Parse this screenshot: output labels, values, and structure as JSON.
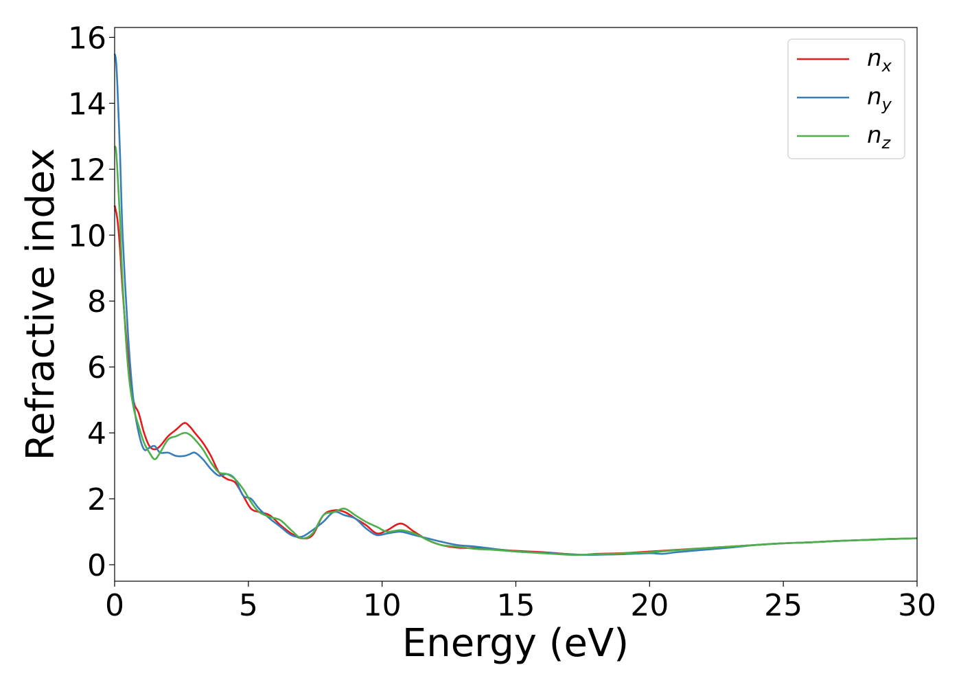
{
  "chart_data": {
    "type": "line",
    "xlabel": "Energy (eV)",
    "ylabel": "Refractive index",
    "xlim": [
      0,
      30
    ],
    "ylim": [
      -0.5,
      16.3
    ],
    "xticks": [
      "0",
      "5",
      "10",
      "15",
      "20",
      "25",
      "30"
    ],
    "yticks": [
      "0",
      "2",
      "4",
      "6",
      "8",
      "10",
      "12",
      "14",
      "16"
    ],
    "grid": false,
    "legend": {
      "placement": "top-right",
      "entries": [
        {
          "base": "n",
          "sub": "x",
          "color": "#e41a1c"
        },
        {
          "base": "n",
          "sub": "y",
          "color": "#377eb8"
        },
        {
          "base": "n",
          "sub": "z",
          "color": "#4daf4a"
        }
      ]
    },
    "series": [
      {
        "name": "n_x",
        "color": "#e41a1c",
        "x": [
          0,
          0.1,
          0.2,
          0.3,
          0.5,
          0.7,
          0.9,
          1.1,
          1.3,
          1.5,
          1.7,
          2.0,
          2.3,
          2.6,
          2.8,
          3.0,
          3.3,
          3.6,
          3.9,
          4.2,
          4.5,
          4.8,
          5.1,
          5.4,
          5.8,
          6.2,
          6.6,
          7.0,
          7.4,
          7.8,
          8.2,
          8.6,
          9.0,
          9.4,
          9.8,
          10.2,
          10.7,
          11.2,
          11.7,
          12.2,
          12.8,
          13.5,
          14.2,
          15.0,
          16.0,
          17.0,
          17.5,
          18.0,
          19.0,
          20.0,
          21.0,
          22.0,
          23.0,
          24.0,
          25.0,
          26.0,
          27.0,
          28.0,
          29.0,
          30.0
        ],
        "y": [
          10.9,
          10.5,
          9.6,
          8.3,
          6.3,
          5.0,
          4.6,
          4.0,
          3.6,
          3.5,
          3.6,
          3.9,
          4.1,
          4.3,
          4.2,
          4.0,
          3.7,
          3.3,
          2.8,
          2.6,
          2.5,
          2.1,
          1.7,
          1.6,
          1.5,
          1.2,
          0.95,
          0.8,
          0.9,
          1.5,
          1.65,
          1.6,
          1.4,
          1.2,
          0.95,
          1.05,
          1.25,
          1.0,
          0.75,
          0.6,
          0.52,
          0.5,
          0.47,
          0.42,
          0.38,
          0.32,
          0.3,
          0.33,
          0.35,
          0.4,
          0.45,
          0.5,
          0.55,
          0.6,
          0.65,
          0.68,
          0.72,
          0.75,
          0.78,
          0.8
        ]
      },
      {
        "name": "n_y",
        "color": "#377eb8",
        "x": [
          0,
          0.05,
          0.1,
          0.2,
          0.3,
          0.5,
          0.7,
          0.9,
          1.1,
          1.3,
          1.5,
          1.7,
          2.0,
          2.3,
          2.6,
          2.8,
          3.0,
          3.3,
          3.6,
          3.9,
          4.2,
          4.5,
          4.8,
          5.1,
          5.4,
          5.8,
          6.2,
          6.6,
          7.0,
          7.4,
          7.8,
          8.2,
          8.6,
          9.0,
          9.4,
          9.8,
          10.2,
          10.7,
          11.2,
          11.7,
          12.2,
          12.8,
          13.5,
          14.2,
          15.0,
          16.0,
          17.0,
          17.5,
          18.0,
          19.0,
          20.0,
          20.5,
          21.0,
          22.0,
          23.0,
          24.0,
          25.0,
          26.0,
          27.0,
          28.0,
          29.0,
          30.0
        ],
        "y": [
          15.5,
          15.3,
          14.6,
          12.5,
          10.0,
          7.0,
          5.0,
          4.0,
          3.5,
          3.55,
          3.6,
          3.4,
          3.4,
          3.3,
          3.3,
          3.35,
          3.4,
          3.2,
          2.9,
          2.7,
          2.75,
          2.6,
          2.1,
          2.0,
          1.7,
          1.4,
          1.15,
          0.9,
          0.85,
          1.05,
          1.3,
          1.6,
          1.5,
          1.4,
          1.1,
          0.9,
          0.95,
          1.0,
          0.9,
          0.8,
          0.7,
          0.6,
          0.55,
          0.48,
          0.4,
          0.36,
          0.32,
          0.3,
          0.3,
          0.32,
          0.35,
          0.33,
          0.38,
          0.45,
          0.52,
          0.6,
          0.65,
          0.68,
          0.72,
          0.75,
          0.78,
          0.8
        ]
      },
      {
        "name": "n_z",
        "color": "#4daf4a",
        "x": [
          0,
          0.05,
          0.1,
          0.2,
          0.3,
          0.5,
          0.7,
          0.9,
          1.1,
          1.3,
          1.5,
          1.7,
          2.0,
          2.3,
          2.6,
          2.8,
          3.0,
          3.3,
          3.6,
          3.9,
          4.2,
          4.5,
          4.8,
          5.1,
          5.4,
          5.8,
          6.2,
          6.6,
          7.0,
          7.4,
          7.8,
          8.2,
          8.6,
          9.0,
          9.4,
          9.8,
          10.2,
          10.7,
          11.2,
          11.7,
          12.2,
          12.8,
          13.5,
          14.2,
          15.0,
          16.0,
          17.0,
          17.5,
          18.0,
          19.0,
          20.0,
          21.0,
          22.0,
          23.0,
          24.0,
          25.0,
          26.0,
          27.0,
          28.0,
          29.0,
          30.0
        ],
        "y": [
          12.7,
          12.6,
          12.0,
          10.5,
          8.5,
          6.0,
          4.8,
          4.2,
          3.7,
          3.4,
          3.2,
          3.4,
          3.8,
          3.9,
          4.0,
          3.95,
          3.8,
          3.5,
          3.1,
          2.8,
          2.75,
          2.6,
          2.3,
          1.9,
          1.6,
          1.45,
          1.35,
          1.05,
          0.8,
          0.95,
          1.5,
          1.6,
          1.7,
          1.5,
          1.3,
          1.15,
          1.0,
          1.05,
          0.95,
          0.75,
          0.6,
          0.55,
          0.48,
          0.45,
          0.4,
          0.35,
          0.3,
          0.3,
          0.32,
          0.34,
          0.38,
          0.44,
          0.5,
          0.55,
          0.6,
          0.65,
          0.68,
          0.72,
          0.75,
          0.78,
          0.8
        ]
      }
    ]
  }
}
